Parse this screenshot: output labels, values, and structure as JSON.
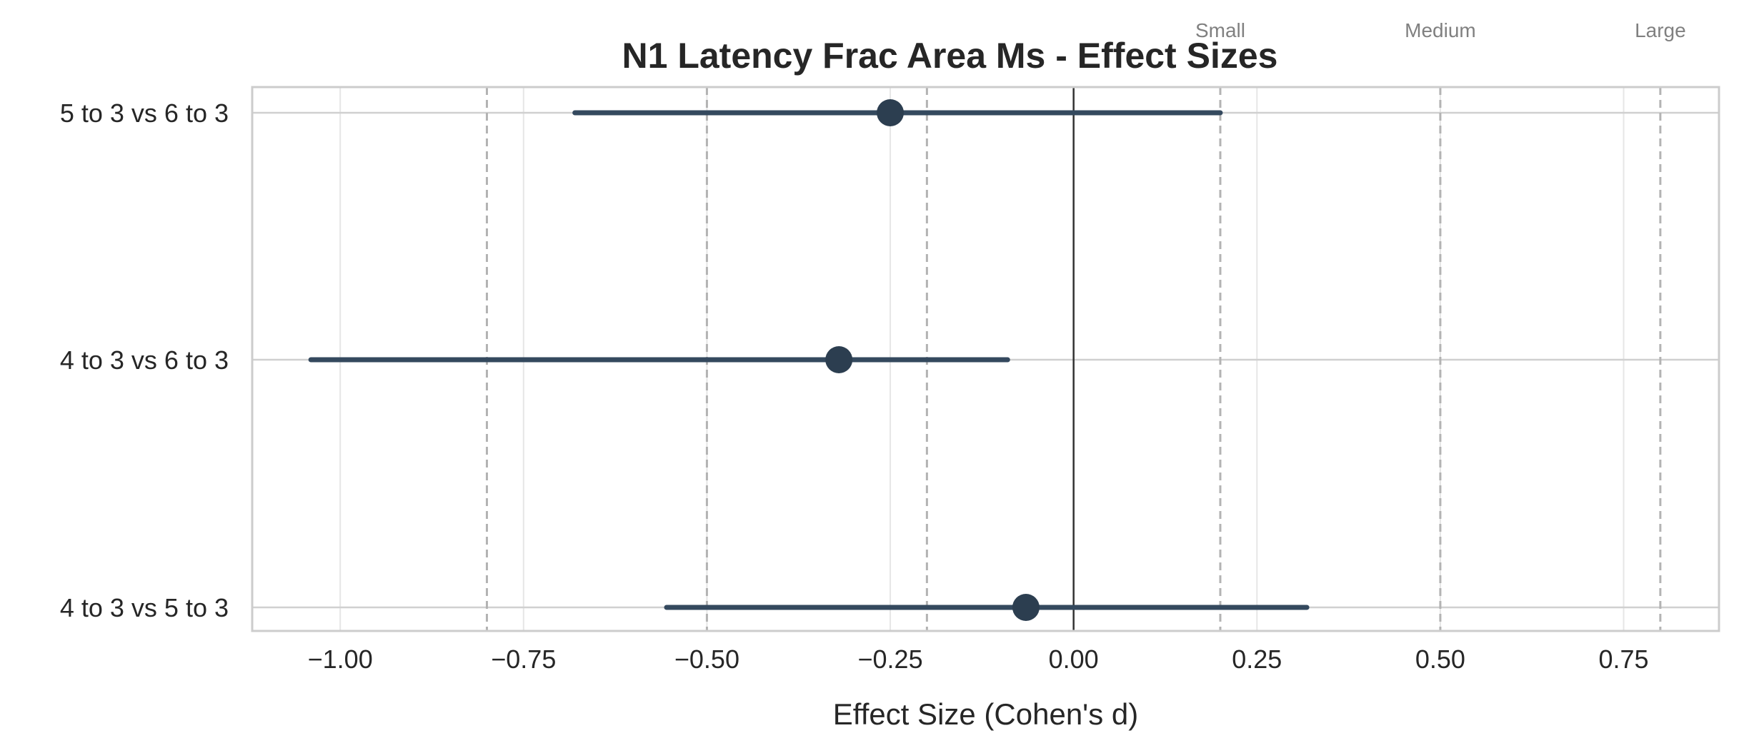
{
  "chart_data": {
    "type": "forest",
    "title": "N1 Latency Frac Area Ms - Effect Sizes",
    "xlabel": "Effect Size (Cohen's d)",
    "ylabel": "",
    "xlim": [
      -1.12,
      0.88
    ],
    "x_ticks": [
      -1.0,
      -0.75,
      -0.5,
      -0.25,
      0.0,
      0.25,
      0.5,
      0.75
    ],
    "x_tick_labels": [
      "−1.00",
      "−0.75",
      "−0.50",
      "−0.25",
      "0.00",
      "0.25",
      "0.50",
      "0.75"
    ],
    "grid": true,
    "zero_line": 0,
    "reference_lines": [
      {
        "x": -0.8,
        "label": ""
      },
      {
        "x": -0.5,
        "label": ""
      },
      {
        "x": -0.2,
        "label": ""
      },
      {
        "x": 0.2,
        "label": "Small"
      },
      {
        "x": 0.5,
        "label": "Medium"
      },
      {
        "x": 0.8,
        "label": "Large"
      }
    ],
    "comparisons": [
      {
        "label": "5 to 3 vs 6 to 3",
        "d": -0.25,
        "ci_low": -0.68,
        "ci_high": 0.2
      },
      {
        "label": "4 to 3 vs 6 to 3",
        "d": -0.32,
        "ci_low": -1.04,
        "ci_high": -0.09
      },
      {
        "label": "4 to 3 vs 5 to 3",
        "d": -0.065,
        "ci_low": -0.555,
        "ci_high": 0.318
      }
    ],
    "colors": {
      "point": "#2c3e50",
      "ci": "#34495e",
      "ref_line": "#b3b3b3",
      "zero_line": "#333333",
      "grid": "#e6e6e6",
      "frame": "#cccccc"
    }
  }
}
